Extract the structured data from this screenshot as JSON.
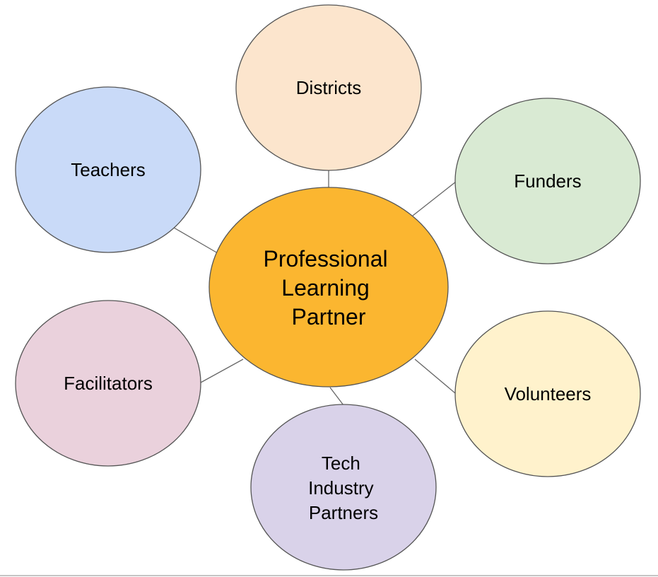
{
  "center": {
    "lines": [
      "Professional",
      "Learning",
      "Partner"
    ],
    "color": "#FBB630"
  },
  "nodes": {
    "districts": {
      "lines": [
        "Districts"
      ],
      "color": "#FCE5CD"
    },
    "teachers": {
      "lines": [
        "Teachers"
      ],
      "color": "#C9DAF8"
    },
    "funders": {
      "lines": [
        "Funders"
      ],
      "color": "#D9EAD3"
    },
    "facilitators": {
      "lines": [
        "Facilitators"
      ],
      "color": "#EAD1DC"
    },
    "volunteers": {
      "lines": [
        "Volunteers"
      ],
      "color": "#FFF2CC"
    },
    "tech": {
      "lines": [
        "Tech",
        "Industry",
        "Partners"
      ],
      "color": "#D9D2E9"
    }
  },
  "outline_color": "#555555",
  "connector_color": "#666666"
}
